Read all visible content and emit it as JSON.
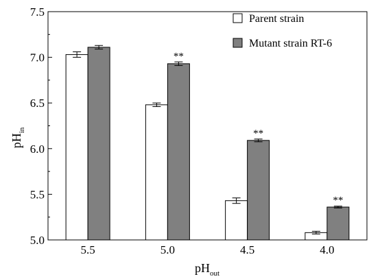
{
  "chart_data": {
    "type": "bar",
    "categories": [
      "5.5",
      "5.0",
      "4.5",
      "4.0"
    ],
    "series": [
      {
        "name": "Parent strain",
        "color": "#ffffff",
        "values": [
          7.03,
          6.48,
          5.43,
          5.08
        ],
        "errors": [
          0.03,
          0.02,
          0.03,
          0.015
        ]
      },
      {
        "name": "Mutant strain RT-6",
        "color": "#808080",
        "values": [
          7.11,
          6.93,
          6.09,
          5.36
        ],
        "errors": [
          0.02,
          0.02,
          0.015,
          0.01
        ]
      }
    ],
    "significance": [
      "",
      "**",
      "**",
      "**"
    ],
    "xlabel": {
      "main": "pH",
      "sub": "out"
    },
    "ylabel": {
      "main": "pH",
      "sub": "in"
    },
    "ylim": [
      5.0,
      7.5
    ],
    "yticks": [
      "5.0",
      "5.5",
      "6.0",
      "6.5",
      "7.0",
      "7.5"
    ],
    "legend_position": "top-right",
    "grid": false
  }
}
